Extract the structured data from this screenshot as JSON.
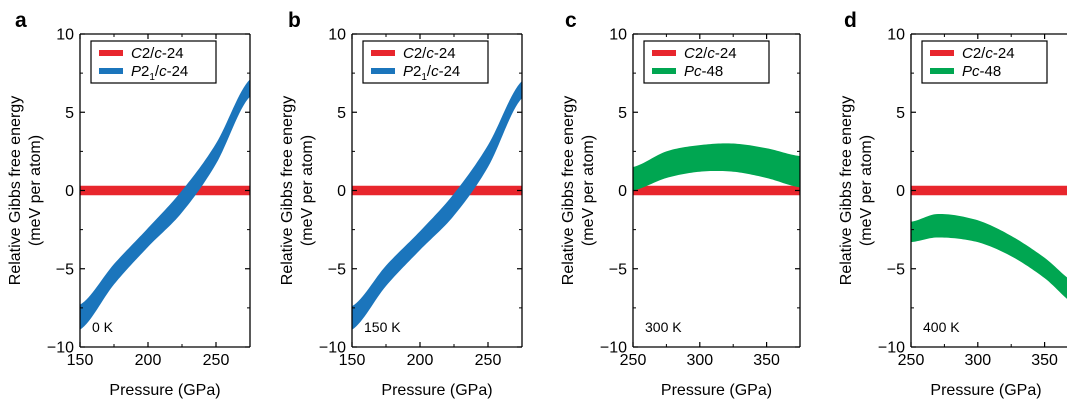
{
  "chart_data": [
    {
      "panel": "a",
      "type": "area",
      "xlabel": "Pressure (GPa)",
      "ylabel": "Relative Gibbs free energy",
      "ylabel2": "(meV per atom)",
      "xlim": [
        150,
        275
      ],
      "ylim": [
        -10,
        10
      ],
      "xticks": [
        150,
        200,
        250
      ],
      "yticks": [
        -10,
        -5,
        0,
        5,
        10
      ],
      "annotation": "0 K",
      "legend_position": "top-left",
      "series": [
        {
          "name": "C2/c-24",
          "name_parts": [
            "C",
            "2/",
            "c",
            "-24",
            ""
          ],
          "color": "#e8262d",
          "x": [
            150,
            275
          ],
          "lower": [
            -0.3,
            -0.3
          ],
          "upper": [
            0.3,
            0.3
          ]
        },
        {
          "name": "P2₁/c-24",
          "name_parts": [
            "P",
            "2",
            "c",
            "-24",
            "1"
          ],
          "color": "#1b75bc",
          "x": [
            150,
            175,
            200,
            225,
            250,
            275
          ],
          "lower": [
            -8.9,
            -6.0,
            -3.6,
            -1.4,
            1.7,
            6.0
          ],
          "upper": [
            -7.3,
            -4.7,
            -2.4,
            0.0,
            3.0,
            7.1
          ]
        }
      ]
    },
    {
      "panel": "b",
      "type": "area",
      "xlabel": "Pressure (GPa)",
      "ylabel": "Relative Gibbs free energy",
      "ylabel2": "(meV per atom)",
      "xlim": [
        150,
        275
      ],
      "ylim": [
        -10,
        10
      ],
      "xticks": [
        150,
        200,
        250
      ],
      "yticks": [
        -10,
        -5,
        0,
        5,
        10
      ],
      "annotation": "150 K",
      "legend_position": "top-left",
      "series": [
        {
          "name": "C2/c-24",
          "name_parts": [
            "C",
            "2/",
            "c",
            "-24",
            ""
          ],
          "color": "#e8262d",
          "x": [
            150,
            275
          ],
          "lower": [
            -0.3,
            -0.3
          ],
          "upper": [
            0.3,
            0.3
          ]
        },
        {
          "name": "P2₁/c-24",
          "name_parts": [
            "P",
            "2",
            "c",
            "-24",
            "1"
          ],
          "color": "#1b75bc",
          "x": [
            150,
            175,
            200,
            225,
            250,
            275
          ],
          "lower": [
            -8.9,
            -6.1,
            -3.8,
            -1.6,
            1.5,
            5.9
          ],
          "upper": [
            -7.4,
            -4.8,
            -2.6,
            -0.2,
            2.9,
            7.0
          ]
        }
      ]
    },
    {
      "panel": "c",
      "type": "area",
      "xlabel": "Pressure (GPa)",
      "ylabel": "Relative Gibbs free energy",
      "ylabel2": "(meV per atom)",
      "xlim": [
        250,
        375
      ],
      "ylim": [
        -10,
        10
      ],
      "xticks": [
        250,
        300,
        350
      ],
      "yticks": [
        -10,
        -5,
        0,
        5,
        10
      ],
      "annotation": "300 K",
      "legend_position": "top-left",
      "series": [
        {
          "name": "C2/c-24",
          "name_parts": [
            "C",
            "2/",
            "c",
            "-24",
            ""
          ],
          "color": "#e8262d",
          "x": [
            250,
            375
          ],
          "lower": [
            -0.3,
            -0.3
          ],
          "upper": [
            0.3,
            0.3
          ]
        },
        {
          "name": "Pc-48",
          "name_parts": [
            "Pc",
            "",
            "",
            "-48",
            ""
          ],
          "color": "#00a651",
          "x": [
            250,
            275,
            300,
            325,
            350,
            375
          ],
          "lower": [
            0.0,
            0.8,
            1.2,
            1.2,
            0.8,
            0.2
          ],
          "upper": [
            1.5,
            2.5,
            2.9,
            3.0,
            2.7,
            2.2
          ]
        }
      ]
    },
    {
      "panel": "d",
      "type": "area",
      "xlabel": "Pressure (GPa)",
      "ylabel": "Relative Gibbs free energy",
      "ylabel2": "(meV per atom)",
      "xlim": [
        250,
        375
      ],
      "ylim": [
        -10,
        10
      ],
      "xticks": [
        250,
        300,
        350
      ],
      "yticks": [
        -10,
        -5,
        0,
        5,
        10
      ],
      "annotation": "400 K",
      "legend_position": "top-left",
      "series": [
        {
          "name": "C2/c-24",
          "name_parts": [
            "C",
            "2/",
            "c",
            "-24",
            ""
          ],
          "color": "#e8262d",
          "x": [
            250,
            375
          ],
          "lower": [
            -0.3,
            -0.3
          ],
          "upper": [
            0.3,
            0.3
          ]
        },
        {
          "name": "Pc-48",
          "name_parts": [
            "Pc",
            "",
            "",
            "-48",
            ""
          ],
          "color": "#00a651",
          "x": [
            250,
            270,
            300,
            325,
            350,
            375
          ],
          "lower": [
            -3.3,
            -3.0,
            -3.3,
            -4.2,
            -5.6,
            -7.4
          ],
          "upper": [
            -2.0,
            -1.5,
            -1.9,
            -2.9,
            -4.3,
            -6.0
          ]
        }
      ]
    }
  ]
}
